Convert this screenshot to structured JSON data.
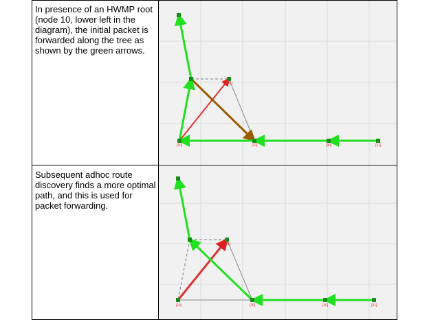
{
  "rows": [
    {
      "text": "In presence of an HWMP root (node 10, lower left in the diagram), the initial packet is forwarded along the tree as shown by the green arrows.",
      "labels": [
        "[10]",
        "[20]",
        "[30]",
        "[31]",
        "[21]"
      ]
    },
    {
      "text": "Subsequent adhoc route discovery finds a more optimal path, and this is used for packet forwarding.",
      "labels": [
        "[10]",
        "[20]",
        "[30]",
        "[31]",
        "[21]"
      ]
    }
  ]
}
